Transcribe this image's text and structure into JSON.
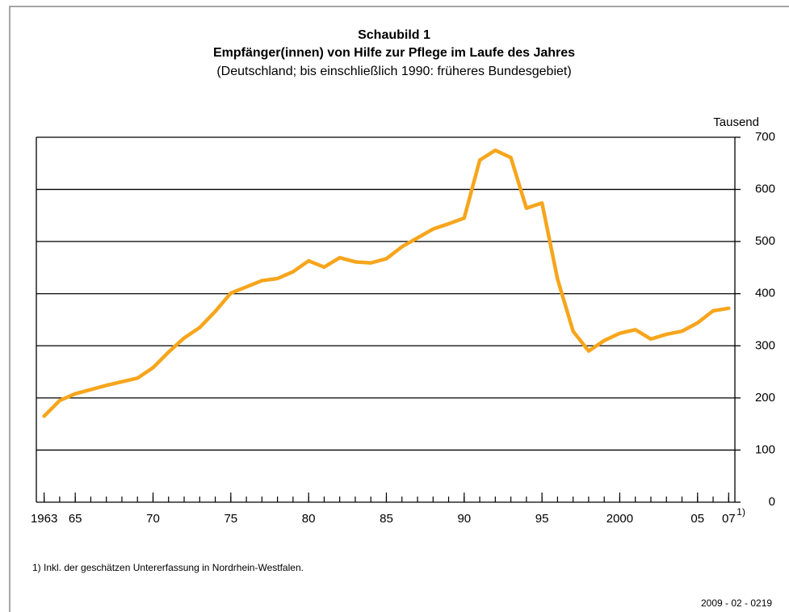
{
  "chart_data": {
    "type": "line",
    "title": "Schaubild 1",
    "subtitle": "Empfänger(innen) von Hilfe zur Pflege im Laufe des Jahres",
    "subtitle2": "(Deutschland; bis einschließlich 1990: früheres Bundesgebiet)",
    "y_unit_label": "Tausend",
    "footnote_marker": "1)",
    "footnote": "1) Inkl. der geschätzen Untererfassung in Nordrhein-Westfalen.",
    "source_code": "2009 - 02 - 0219",
    "x": [
      1963,
      1964,
      1965,
      1966,
      1967,
      1968,
      1969,
      1970,
      1971,
      1972,
      1973,
      1974,
      1975,
      1976,
      1977,
      1978,
      1979,
      1980,
      1981,
      1982,
      1983,
      1984,
      1985,
      1986,
      1987,
      1988,
      1989,
      1990,
      1991,
      1992,
      1993,
      1994,
      1995,
      1996,
      1997,
      1998,
      1999,
      2000,
      2001,
      2002,
      2003,
      2004,
      2005,
      2006,
      2007
    ],
    "series": [
      {
        "name": "Empfänger(innen)",
        "color": "#f7a51c",
        "values": [
          165,
          195,
          208,
          216,
          224,
          231,
          238,
          258,
          288,
          315,
          335,
          366,
          401,
          413,
          425,
          429,
          442,
          463,
          451,
          469,
          461,
          459,
          467,
          490,
          507,
          524,
          534,
          545,
          656,
          675,
          661,
          564,
          574,
          428,
          328,
          290,
          310,
          324,
          331,
          313,
          322,
          328,
          344,
          367,
          372
        ]
      }
    ],
    "xlim": [
      1962.5,
      2007.4
    ],
    "xticks": [
      1963,
      {
        "value": 1965,
        "label": "65"
      },
      {
        "value": 1970,
        "label": "70"
      },
      {
        "value": 1975,
        "label": "75"
      },
      {
        "value": 1980,
        "label": "80"
      },
      {
        "value": 1985,
        "label": "85"
      },
      {
        "value": 1990,
        "label": "90"
      },
      {
        "value": 1995,
        "label": "95"
      },
      2000,
      {
        "value": 2005,
        "label": "05"
      },
      {
        "value": 2007,
        "label": "07"
      }
    ],
    "ylim": [
      0,
      700
    ],
    "yticks": [
      0,
      100,
      200,
      300,
      400,
      500,
      600,
      700
    ],
    "grid": true
  }
}
